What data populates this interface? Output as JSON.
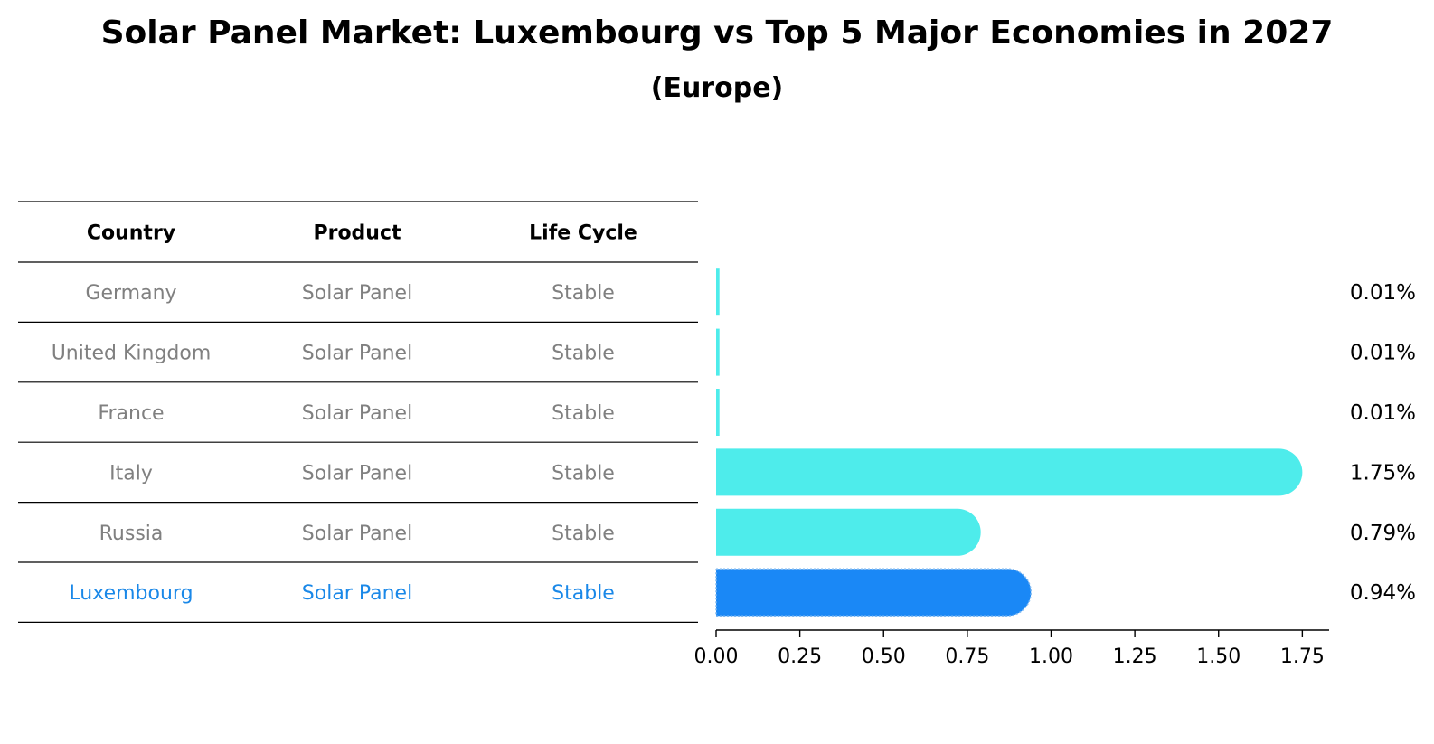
{
  "title": "Solar Panel Market: Luxembourg vs Top 5 Major Economies in 2027",
  "subtitle": "(Europe)",
  "table": {
    "headers": [
      "Country",
      "Product",
      "Life Cycle"
    ],
    "rows": [
      [
        "Germany",
        "Solar Panel",
        "Stable"
      ],
      [
        "United Kingdom",
        "Solar Panel",
        "Stable"
      ],
      [
        "France",
        "Solar Panel",
        "Stable"
      ],
      [
        "Italy",
        "Solar Panel",
        "Stable"
      ],
      [
        "Russia",
        "Solar Panel",
        "Stable"
      ],
      [
        "Luxembourg",
        "Solar Panel",
        "Stable"
      ]
    ],
    "highlight_row": 5,
    "text_color": "#808080",
    "highlight_color": "#1a88e8"
  },
  "chart_data": {
    "type": "bar",
    "orientation": "horizontal",
    "categories": [
      "Germany",
      "United Kingdom",
      "France",
      "Italy",
      "Russia",
      "Luxembourg"
    ],
    "values": [
      0.01,
      0.01,
      0.01,
      1.75,
      0.79,
      0.94
    ],
    "value_labels": [
      "0.01%",
      "0.01%",
      "0.01%",
      "1.75%",
      "0.79%",
      "0.94%"
    ],
    "xlim": [
      0,
      1.83
    ],
    "xticks": [
      "0.00",
      "0.25",
      "0.50",
      "0.75",
      "1.00",
      "1.25",
      "1.50",
      "1.75"
    ],
    "xlabel": "",
    "ylabel": "",
    "grid": false,
    "colors": [
      "#4eeceb",
      "#4eeceb",
      "#4eeceb",
      "#4eeceb",
      "#4eeceb",
      "#1a88f6"
    ]
  }
}
